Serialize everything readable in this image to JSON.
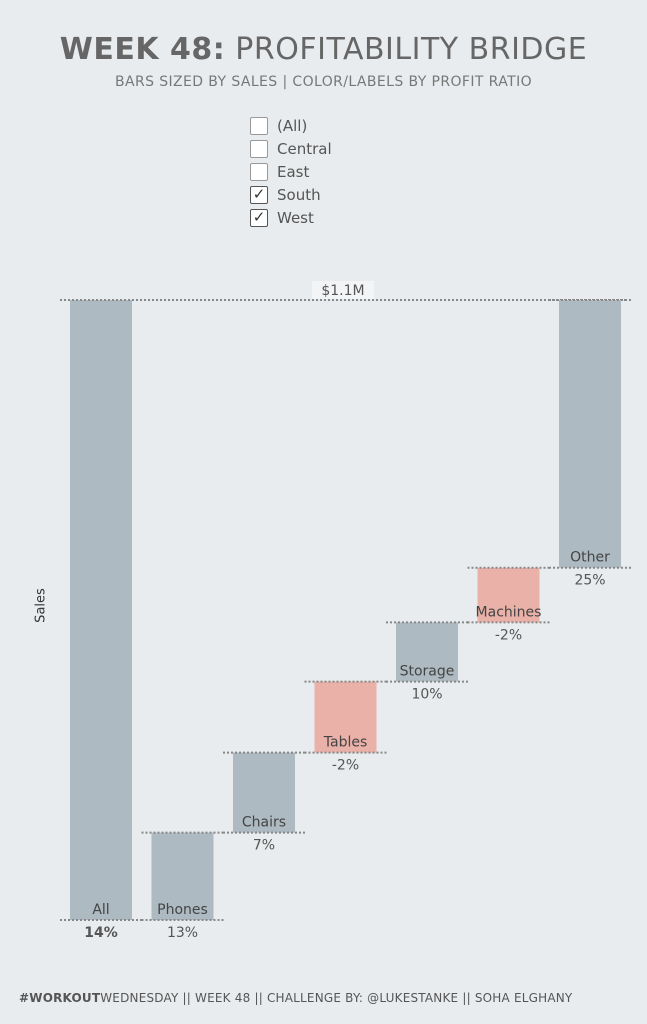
{
  "header": {
    "title_bold": "WEEK 48:",
    "title_rest": " PROFITABILITY BRIDGE",
    "subtitle": "BARS SIZED BY SALES  |  COLOR/LABELS BY PROFIT RATIO"
  },
  "filter": {
    "options": [
      {
        "label": "(All)",
        "checked": false
      },
      {
        "label": "Central",
        "checked": false
      },
      {
        "label": "East",
        "checked": false
      },
      {
        "label": "South",
        "checked": true
      },
      {
        "label": "West",
        "checked": true
      }
    ]
  },
  "colors": {
    "positive": "#adbac2",
    "negative": "#e9b1a8",
    "total_label_bg": "#f3f4f5"
  },
  "chart_data": {
    "type": "bar",
    "subtype": "waterfall",
    "ylabel": "Sales",
    "total_label": "$1.1M",
    "total_value": 1.1,
    "units": "$M",
    "categories": [
      "All",
      "Phones",
      "Chairs",
      "Tables",
      "Storage",
      "Machines",
      "Other"
    ],
    "bars": [
      {
        "category": "All",
        "start": 0,
        "end": 1.1,
        "profit_ratio_label": "14%",
        "profit_ratio": 0.14
      },
      {
        "category": "Phones",
        "start": 0,
        "end": 0.155,
        "profit_ratio_label": "13%",
        "profit_ratio": 0.13
      },
      {
        "category": "Chairs",
        "start": 0.155,
        "end": 0.297,
        "profit_ratio_label": "7%",
        "profit_ratio": 0.07
      },
      {
        "category": "Tables",
        "start": 0.297,
        "end": 0.423,
        "profit_ratio_label": "-2%",
        "profit_ratio": -0.02
      },
      {
        "category": "Storage",
        "start": 0.423,
        "end": 0.528,
        "profit_ratio_label": "10%",
        "profit_ratio": 0.1
      },
      {
        "category": "Machines",
        "start": 0.528,
        "end": 0.625,
        "profit_ratio_label": "-2%",
        "profit_ratio": -0.02
      },
      {
        "category": "Other",
        "start": 0.625,
        "end": 1.1,
        "profit_ratio_label": "25%",
        "profit_ratio": 0.25
      }
    ],
    "ylim": [
      0,
      1.1
    ],
    "grid": false
  },
  "footer": {
    "hashtag_bold": "#WORKOUT",
    "rest": "WEDNESDAY || WEEK 48 || CHALLENGE BY: @LUKESTANKE || SOHA ELGHANY"
  }
}
